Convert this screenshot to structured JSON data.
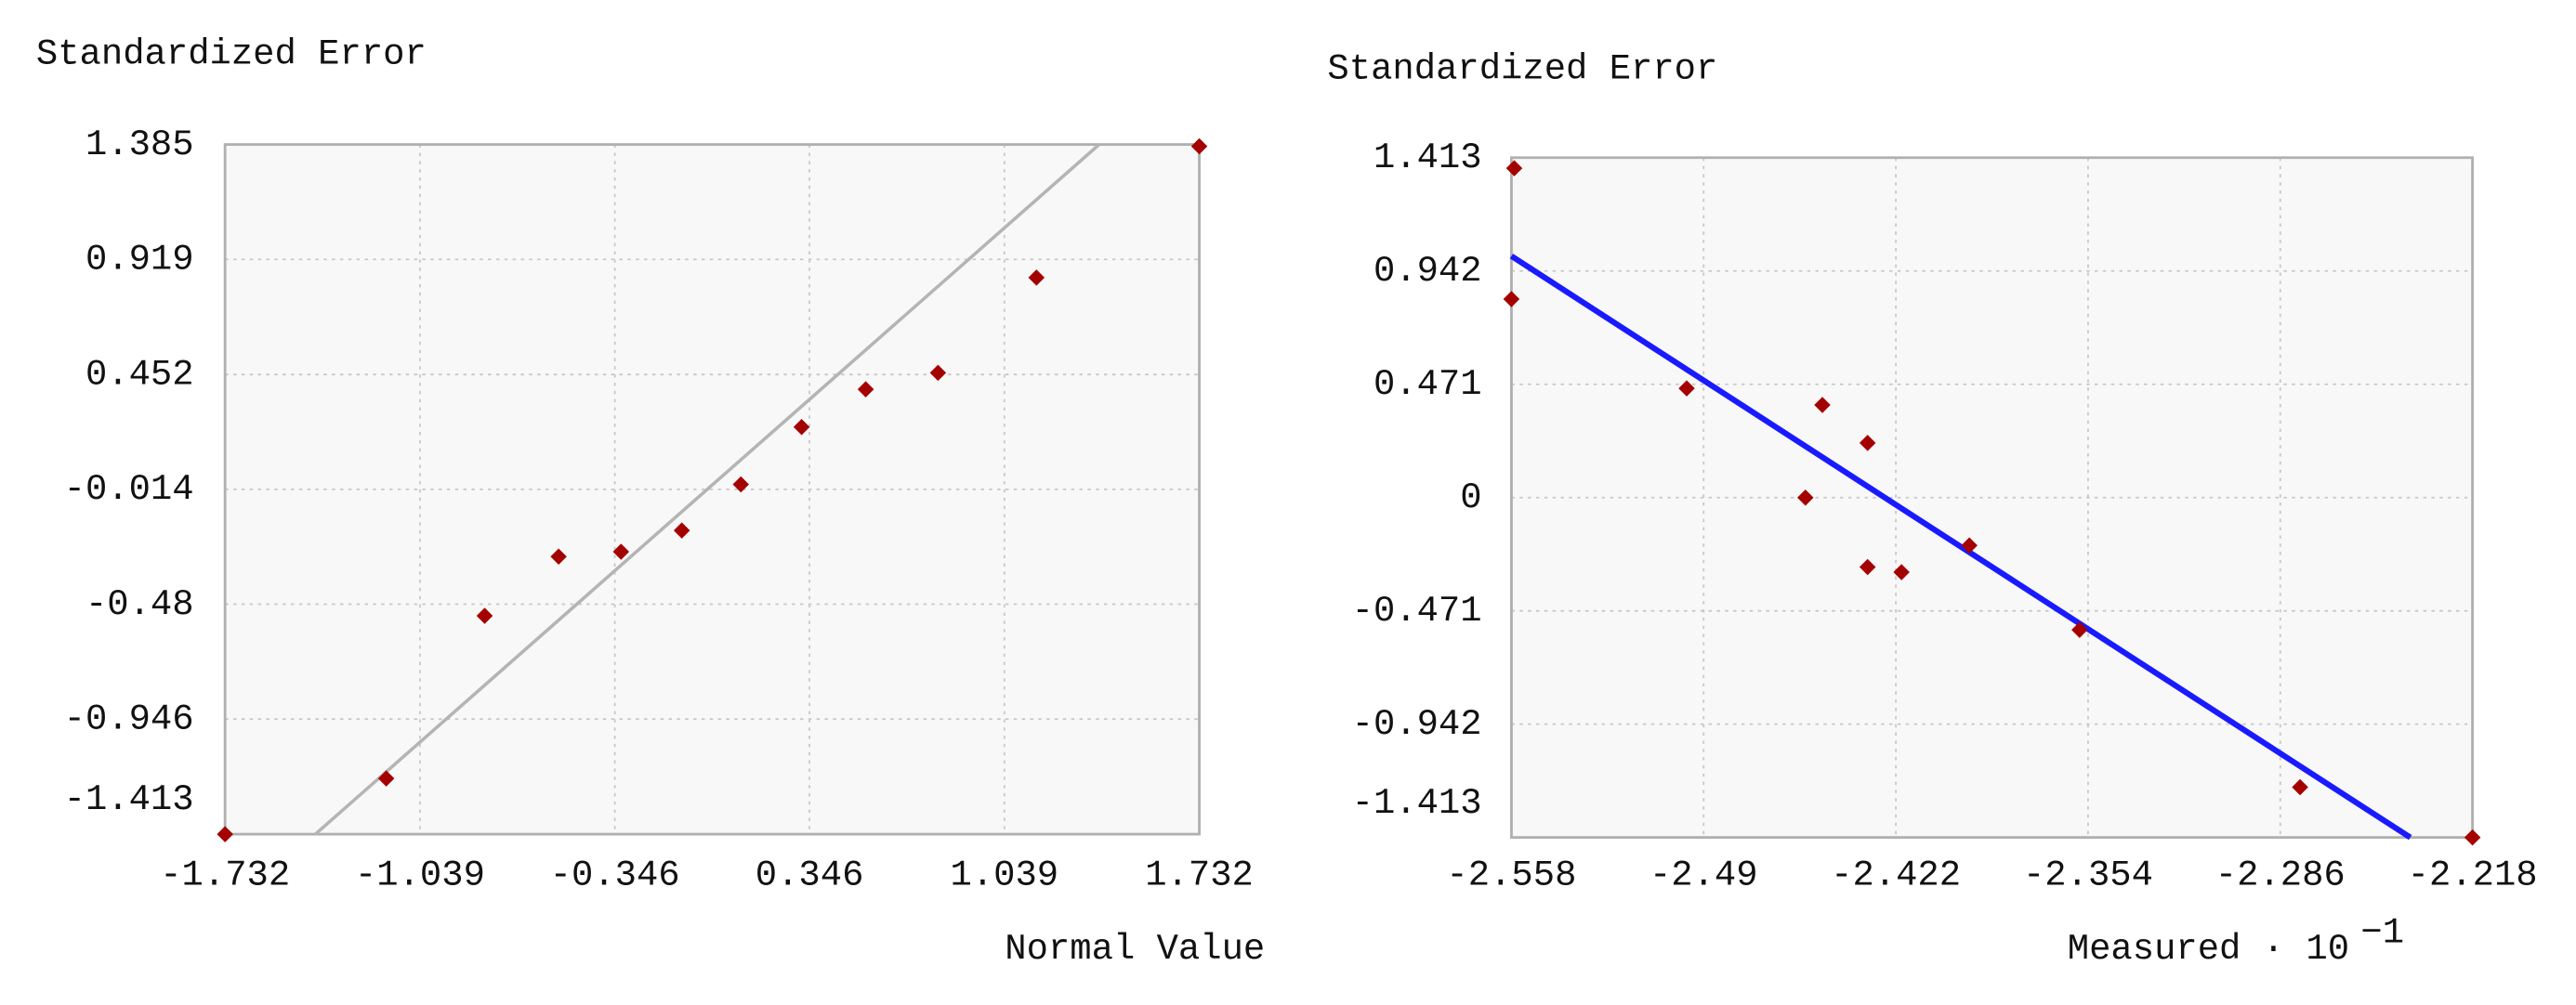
{
  "chart_data": [
    {
      "type": "scatter",
      "y_label": "Standardized Error",
      "x_label": "Normal Value",
      "xlim": [
        -1.732,
        1.732
      ],
      "ylim": [
        -1.413,
        1.385
      ],
      "xticks": [
        -1.732,
        -1.039,
        -0.346,
        0.346,
        1.039,
        1.732
      ],
      "yticks": [
        1.385,
        0.919,
        0.452,
        -0.014,
        -0.48,
        -0.946,
        -1.413
      ],
      "grid": true,
      "color": "#a50000",
      "x": [
        -1.732,
        -1.159,
        -0.809,
        -0.546,
        -0.324,
        -0.108,
        0.102,
        0.318,
        0.546,
        0.803,
        1.153,
        1.732
      ],
      "values": [
        -1.413,
        -1.187,
        -0.527,
        -0.287,
        -0.267,
        -0.181,
        0.006,
        0.239,
        0.392,
        0.459,
        0.845,
        1.378
      ],
      "line": {
        "x": [
          -1.411,
          1.376
        ],
        "values": [
          -1.413,
          1.385
        ],
        "color": "#b4b4b4"
      }
    },
    {
      "type": "scatter",
      "y_label": "Standardized Error",
      "x_label": "Measured · 10",
      "x_label_exponent": "−1",
      "xlim": [
        -2.558,
        -2.218
      ],
      "ylim": [
        -1.413,
        1.413
      ],
      "xticks": [
        -2.558,
        -2.49,
        -2.422,
        -2.354,
        -2.286,
        -2.218
      ],
      "yticks": [
        1.413,
        0.942,
        0.471,
        0,
        -0.471,
        -0.942,
        -1.413
      ],
      "grid": true,
      "color": "#a50000",
      "x": [
        -2.557,
        -2.558,
        -2.496,
        -2.454,
        -2.448,
        -2.432,
        -2.432,
        -2.42,
        -2.396,
        -2.357,
        -2.279,
        -2.218
      ],
      "values": [
        1.369,
        0.825,
        0.454,
        0,
        0.385,
        0.227,
        -0.289,
        -0.31,
        -0.199,
        -0.55,
        -1.204,
        -1.413
      ],
      "line": {
        "x": [
          -2.558,
          -2.24
        ],
        "values": [
          1.004,
          -1.413
        ],
        "color": "#1a1aff"
      }
    }
  ]
}
